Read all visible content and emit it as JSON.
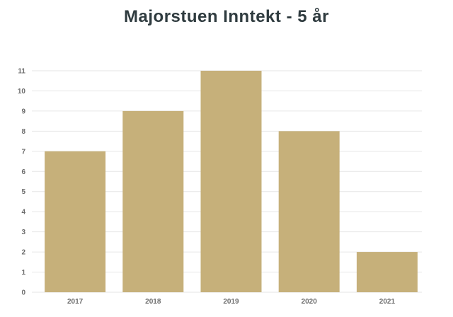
{
  "chart_data": {
    "type": "bar",
    "title": "Majorstuen Inntekt - 5 år",
    "xlabel": "",
    "ylabel": "",
    "categories": [
      "2017",
      "2018",
      "2019",
      "2020",
      "2021"
    ],
    "values": [
      7,
      9,
      11,
      8,
      2
    ],
    "ylim": [
      0,
      11
    ],
    "yticks": [
      0,
      1,
      2,
      3,
      4,
      5,
      6,
      7,
      8,
      9,
      10,
      11
    ],
    "grid": true,
    "legend": "none",
    "bar_color": "#c6b07a",
    "grid_color": "#e6e6e6"
  }
}
